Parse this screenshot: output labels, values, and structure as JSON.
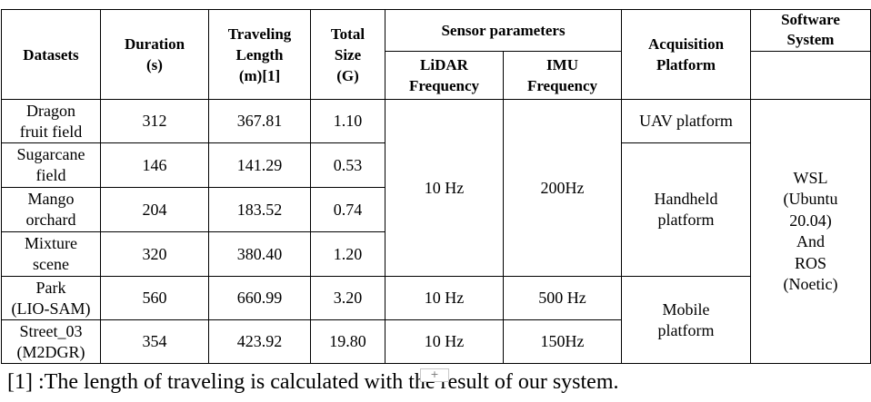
{
  "table": {
    "headers": {
      "datasets": "Datasets",
      "duration": [
        "Duration",
        "(s)"
      ],
      "length": [
        "Traveling",
        "Length",
        "(m)[1]"
      ],
      "size": [
        "Total",
        "Size",
        "(G)"
      ],
      "sensor": "Sensor parameters",
      "lidar": [
        "LiDAR",
        "Frequency"
      ],
      "imu": [
        "IMU",
        "Frequency"
      ],
      "platform": [
        "Acquisition",
        "Platform"
      ],
      "software": [
        "Software",
        "System"
      ]
    },
    "rows": [
      {
        "name": [
          "Dragon",
          "fruit field"
        ],
        "duration": "312",
        "length": "367.81",
        "size": "1.10"
      },
      {
        "name": [
          "Sugarcane",
          "field"
        ],
        "duration": "146",
        "length": "141.29",
        "size": "0.53"
      },
      {
        "name": [
          "Mango",
          "orchard"
        ],
        "duration": "204",
        "length": "183.52",
        "size": "0.74"
      },
      {
        "name": [
          "Mixture",
          "scene"
        ],
        "duration": "320",
        "length": "380.40",
        "size": "1.20"
      },
      {
        "name": [
          "Park",
          "(LIO-SAM)"
        ],
        "duration": "560",
        "length": "660.99",
        "size": "3.20"
      },
      {
        "name": [
          "Street_03",
          "(M2DGR)"
        ],
        "duration": "354",
        "length": "423.92",
        "size": "19.80"
      }
    ],
    "merged": {
      "lidar_group1": "10 Hz",
      "imu_group1": "200Hz",
      "lidar_park": "10 Hz",
      "imu_park": "500 Hz",
      "lidar_street": "10 Hz",
      "imu_street": "150Hz",
      "platform_uav": "UAV platform",
      "platform_handheld": [
        "Handheld",
        "platform"
      ],
      "platform_mobile": [
        "Mobile",
        "platform"
      ],
      "software": [
        "WSL",
        "(Ubuntu",
        "20.04)",
        "And",
        "ROS",
        "(Noetic)"
      ]
    }
  },
  "footnote": "[1]  :The length of traveling is calculated with the result of our system.",
  "plus_button": "+"
}
